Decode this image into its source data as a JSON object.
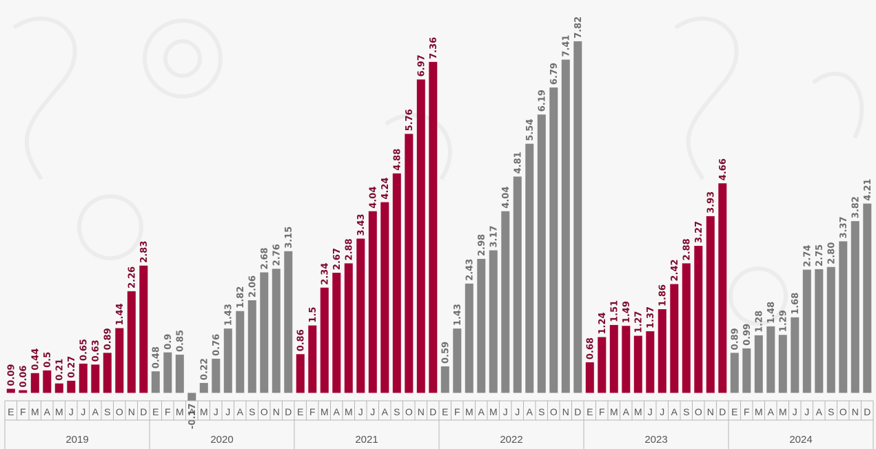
{
  "chart_data": {
    "type": "bar",
    "title": "",
    "xlabel": "",
    "ylabel": "",
    "ylim": [
      -0.4,
      8.0
    ],
    "grid": false,
    "legend": "none",
    "month_labels": [
      "E",
      "F",
      "M",
      "A",
      "M",
      "J",
      "J",
      "A",
      "S",
      "O",
      "N",
      "D"
    ],
    "colors": {
      "red": "#a30034",
      "gray": "#878787",
      "red_label": "#7d0a2e",
      "gray_label": "#707070"
    },
    "years": [
      {
        "year": "2019",
        "color": "red",
        "values": [
          0.09,
          0.06,
          0.44,
          0.5,
          0.21,
          0.27,
          0.65,
          0.63,
          0.89,
          1.44,
          2.26,
          2.83
        ],
        "labels": [
          "0.09",
          "0.06",
          "0.44",
          "0.5",
          "0.21",
          "0.27",
          "0.65",
          "0.63",
          "0.89",
          "1.44",
          "2.26",
          "2.83"
        ]
      },
      {
        "year": "2020",
        "color": "gray",
        "values": [
          0.48,
          0.9,
          0.85,
          -0.17,
          0.22,
          0.76,
          1.43,
          1.82,
          2.06,
          2.68,
          2.76,
          3.15
        ],
        "labels": [
          "0.48",
          "0.9",
          "0.85",
          "-0.17",
          "0.22",
          "0.76",
          "1.43",
          "1.82",
          "2.06",
          "2.68",
          "2.76",
          "3.15"
        ]
      },
      {
        "year": "2021",
        "color": "red",
        "values": [
          0.86,
          1.5,
          2.34,
          2.67,
          2.88,
          3.43,
          4.04,
          4.24,
          4.88,
          5.76,
          6.97,
          7.36
        ],
        "labels": [
          "0.86",
          "1.5",
          "2.34",
          "2.67",
          "2.88",
          "3.43",
          "4.04",
          "4.24",
          "4.88",
          "5.76",
          "6.97",
          "7.36"
        ]
      },
      {
        "year": "2022",
        "color": "gray",
        "values": [
          0.59,
          1.43,
          2.43,
          2.98,
          3.17,
          4.04,
          4.81,
          5.54,
          6.19,
          6.79,
          7.41,
          7.82
        ],
        "labels": [
          "0.59",
          "1.43",
          "2.43",
          "2.98",
          "3.17",
          "4.04",
          "4.81",
          "5.54",
          "6.19",
          "6.79",
          "7.41",
          "7.82"
        ]
      },
      {
        "year": "2023",
        "color": "red",
        "values": [
          0.68,
          1.24,
          1.51,
          1.49,
          1.27,
          1.37,
          1.86,
          2.42,
          2.88,
          3.27,
          3.93,
          4.66
        ],
        "labels": [
          "0.68",
          "1.24",
          "1.51",
          "1.49",
          "1.27",
          "1.37",
          "1.86",
          "2.42",
          "2.88",
          "3.27",
          "3.93",
          "4.66"
        ]
      },
      {
        "year": "2024",
        "color": "gray",
        "values": [
          0.89,
          0.99,
          1.28,
          1.48,
          1.29,
          1.68,
          2.74,
          2.75,
          2.8,
          3.37,
          3.82,
          4.21
        ],
        "labels": [
          "0.89",
          "0.99",
          "1.28",
          "1.48",
          "1.29",
          "1.68",
          "2.74",
          "2.75",
          "2.80",
          "3.37",
          "3.82",
          "4.21"
        ]
      }
    ]
  }
}
